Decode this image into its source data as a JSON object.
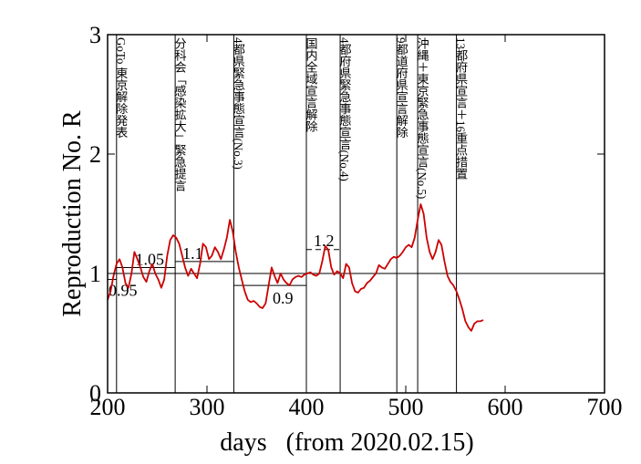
{
  "chart_data": {
    "type": "line",
    "xlabel": "days   (from 2020.02.15)",
    "ylabel": "Reproduction No.  R",
    "xlim": [
      200,
      700
    ],
    "ylim": [
      0,
      3
    ],
    "x_ticks": [
      200,
      300,
      400,
      500,
      600,
      700
    ],
    "y_ticks": [
      0,
      1,
      2,
      3
    ],
    "grid": false,
    "legend": "none",
    "reference_line": 1,
    "series": [
      {
        "color": "#cc0000",
        "x": [
          200,
          203,
          206,
          209,
          212,
          215,
          218,
          221,
          224,
          227,
          230,
          233,
          236,
          239,
          242,
          245,
          248,
          251,
          254,
          257,
          260,
          263,
          266,
          269,
          272,
          275,
          278,
          281,
          284,
          287,
          290,
          293,
          296,
          299,
          302,
          305,
          308,
          311,
          314,
          317,
          320,
          323,
          326,
          329,
          332,
          335,
          338,
          341,
          344,
          347,
          350,
          353,
          356,
          359,
          362,
          365,
          368,
          371,
          374,
          377,
          380,
          383,
          386,
          389,
          392,
          395,
          398,
          401,
          404,
          407,
          410,
          413,
          416,
          419,
          422,
          425,
          428,
          431,
          434,
          437,
          440,
          443,
          446,
          449,
          452,
          455,
          458,
          461,
          464,
          467,
          470,
          473,
          476,
          479,
          482,
          485,
          488,
          491,
          494,
          497,
          500,
          503,
          506,
          509,
          512,
          515,
          518,
          521,
          524,
          527,
          530,
          533,
          536,
          539,
          542,
          545,
          548,
          551,
          554,
          557,
          560,
          563,
          566,
          569,
          572,
          575,
          578
        ],
        "y": [
          0.78,
          0.85,
          0.98,
          1.08,
          1.12,
          1.05,
          0.92,
          0.88,
          1.0,
          1.18,
          1.12,
          1.05,
          0.97,
          0.93,
          1.02,
          1.08,
          1.0,
          0.95,
          0.88,
          0.95,
          1.15,
          1.28,
          1.32,
          1.3,
          1.25,
          1.15,
          1.05,
          0.98,
          1.04,
          1.0,
          0.96,
          1.08,
          1.25,
          1.22,
          1.12,
          1.15,
          1.22,
          1.18,
          1.12,
          1.2,
          1.3,
          1.45,
          1.35,
          1.18,
          1.05,
          0.95,
          0.85,
          0.78,
          0.76,
          0.77,
          0.75,
          0.72,
          0.71,
          0.75,
          0.9,
          1.05,
          0.98,
          0.92,
          1.0,
          0.95,
          0.92,
          0.9,
          0.95,
          0.97,
          0.98,
          0.97,
          0.99,
          1.0,
          1.01,
          0.99,
          0.98,
          1.0,
          1.1,
          1.23,
          1.2,
          1.05,
          0.99,
          1.02,
          1.0,
          0.96,
          1.08,
          1.05,
          0.92,
          0.85,
          0.84,
          0.87,
          0.88,
          0.92,
          0.94,
          0.97,
          1.0,
          1.07,
          1.05,
          1.04,
          1.08,
          1.12,
          1.14,
          1.13,
          1.15,
          1.18,
          1.22,
          1.24,
          1.22,
          1.3,
          1.45,
          1.58,
          1.5,
          1.3,
          1.18,
          1.12,
          1.18,
          1.28,
          1.24,
          1.1,
          0.98,
          0.93,
          0.9,
          0.85,
          0.78,
          0.7,
          0.6,
          0.55,
          0.52,
          0.58,
          0.6,
          0.6,
          0.61
        ]
      }
    ],
    "events": [
      {
        "x": 209,
        "label": "GoTo 東京解除発表"
      },
      {
        "x": 268,
        "label": "分科会「感染拡大」緊急提言"
      },
      {
        "x": 327,
        "label": "4都県緊急事態宣言(No.3)"
      },
      {
        "x": 400,
        "label": "国内全域宣言解除"
      },
      {
        "x": 434,
        "label": "4都府県緊急事態宣言(No.4)"
      },
      {
        "x": 491,
        "label": "9都道府県宣言解除"
      },
      {
        "x": 512,
        "label": "沖縄＋東京緊急事態宣言(No.5)"
      },
      {
        "x": 551,
        "label": "13都府県宣言＋16重点措置"
      }
    ],
    "level_annotations": [
      {
        "value": 0.95,
        "x_start": 200,
        "x_end": 209,
        "label": "0.95"
      },
      {
        "value": 1.05,
        "x_start": 209,
        "x_end": 268,
        "label": "1.05"
      },
      {
        "value": 1.1,
        "x_start": 268,
        "x_end": 327,
        "label": "1.1"
      },
      {
        "value": 0.9,
        "x_start": 327,
        "x_end": 400,
        "label": "0.9"
      },
      {
        "value": 1.2,
        "x_start": 400,
        "x_end": 434,
        "label": "1.2",
        "dashed": true
      }
    ]
  }
}
